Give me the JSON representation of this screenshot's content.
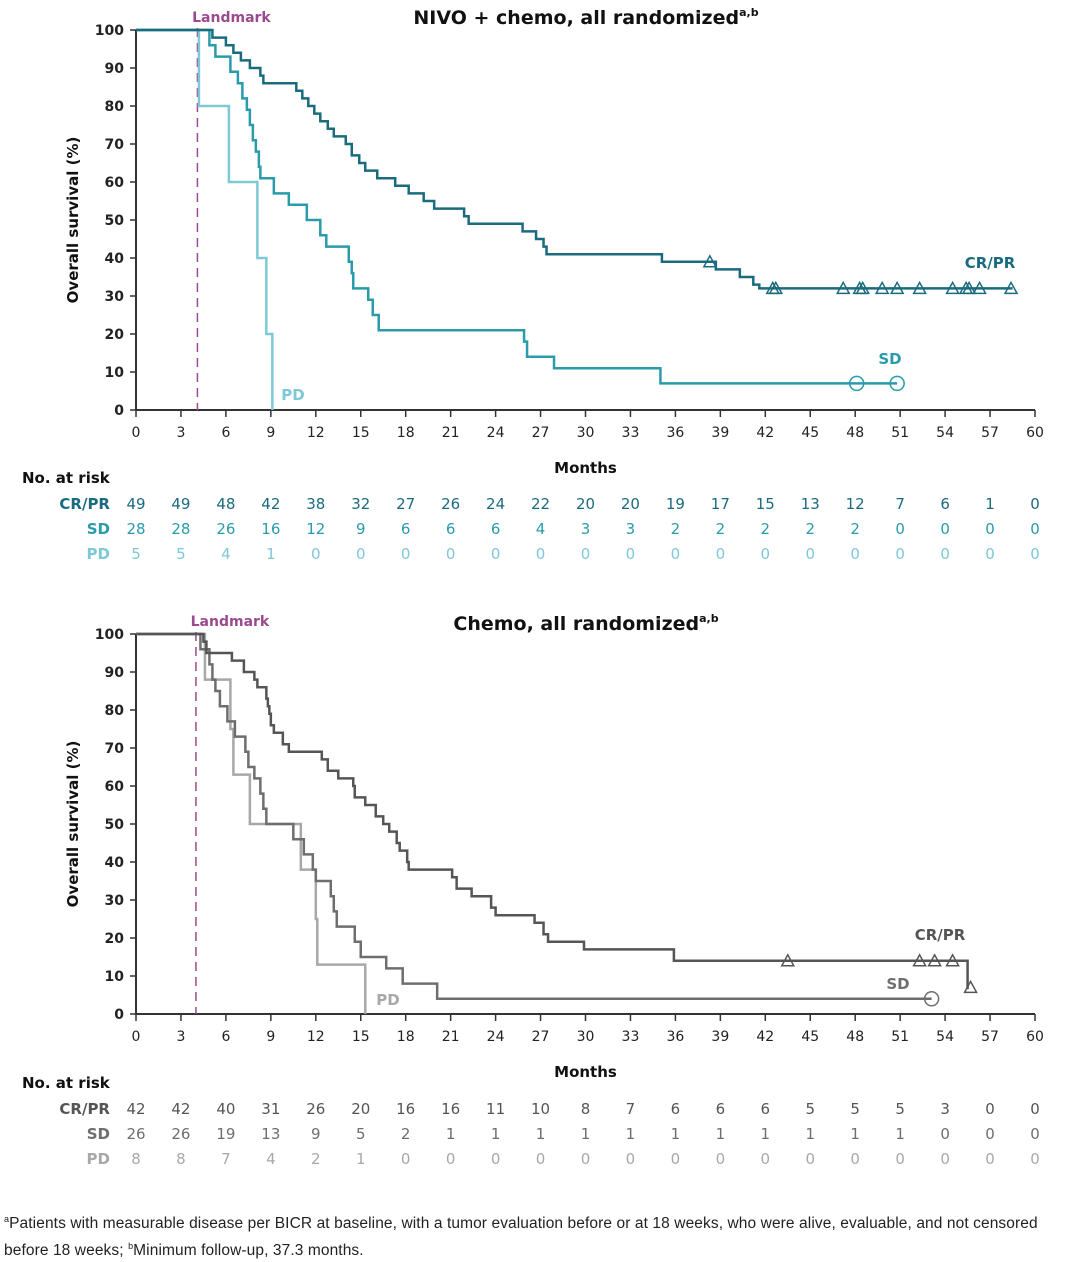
{
  "chart_data": [
    {
      "type": "line",
      "subtype": "kaplan-meier",
      "title": "NIVO + chemo, all randomized",
      "title_superscript": "a,b",
      "xlabel": "Months",
      "ylabel": "Overall survival (%)",
      "xlim": [
        0,
        60
      ],
      "ylim": [
        0,
        100
      ],
      "xticks": [
        0,
        3,
        6,
        9,
        12,
        15,
        18,
        21,
        24,
        27,
        30,
        33,
        36,
        39,
        42,
        45,
        48,
        51,
        54,
        57,
        60
      ],
      "yticks": [
        0,
        10,
        20,
        30,
        40,
        50,
        60,
        70,
        80,
        90,
        100
      ],
      "grid": false,
      "landmark": {
        "label": "Landmark",
        "x": 4.1,
        "color": "#9b4a8f"
      },
      "series": [
        {
          "name": "CR/PR",
          "color": "#1b6b7f",
          "censor_marker": "triangle",
          "label_pos": "right",
          "steps": [
            [
              0,
              100
            ],
            [
              5.1,
              98
            ],
            [
              6.0,
              96
            ],
            [
              6.5,
              94
            ],
            [
              7.0,
              92
            ],
            [
              7.6,
              90
            ],
            [
              8.3,
              88
            ],
            [
              8.5,
              86
            ],
            [
              10.7,
              84
            ],
            [
              11.1,
              82
            ],
            [
              11.5,
              80
            ],
            [
              11.9,
              78
            ],
            [
              12.3,
              76
            ],
            [
              12.8,
              74
            ],
            [
              13.2,
              72
            ],
            [
              14.0,
              70
            ],
            [
              14.4,
              67
            ],
            [
              14.9,
              65
            ],
            [
              15.3,
              63
            ],
            [
              16.1,
              61
            ],
            [
              17.3,
              59
            ],
            [
              18.2,
              57
            ],
            [
              19.2,
              55
            ],
            [
              19.9,
              53
            ],
            [
              21.9,
              51
            ],
            [
              22.2,
              49
            ],
            [
              25.8,
              47
            ],
            [
              26.7,
              45
            ],
            [
              27.2,
              43
            ],
            [
              27.4,
              41
            ],
            [
              35.1,
              39
            ],
            [
              38.7,
              37
            ],
            [
              40.3,
              35
            ],
            [
              41.2,
              33
            ],
            [
              41.6,
              32
            ],
            [
              58.5,
              32
            ]
          ],
          "censored": [
            38.3,
            42.5,
            42.7,
            47.2,
            48.3,
            48.5,
            49.8,
            50.8,
            52.3,
            54.5,
            55.4,
            55.6,
            56.3,
            58.4
          ],
          "censored_y": [
            39,
            32,
            32,
            32,
            32,
            32,
            32,
            32,
            32,
            32,
            32,
            32,
            32,
            32
          ]
        },
        {
          "name": "SD",
          "color": "#2a9bab",
          "censor_marker": "circle",
          "label_pos": "right",
          "steps": [
            [
              0,
              100
            ],
            [
              4.9,
              96
            ],
            [
              5.3,
              93
            ],
            [
              6.3,
              89
            ],
            [
              6.8,
              86
            ],
            [
              7.1,
              82
            ],
            [
              7.4,
              79
            ],
            [
              7.6,
              75
            ],
            [
              7.8,
              71
            ],
            [
              8.0,
              68
            ],
            [
              8.2,
              64
            ],
            [
              8.3,
              61
            ],
            [
              9.2,
              57
            ],
            [
              10.2,
              54
            ],
            [
              11.4,
              50
            ],
            [
              12.3,
              46
            ],
            [
              12.7,
              43
            ],
            [
              14.2,
              39
            ],
            [
              14.4,
              36
            ],
            [
              14.5,
              32
            ],
            [
              15.5,
              29
            ],
            [
              15.8,
              25
            ],
            [
              16.2,
              21
            ],
            [
              25.9,
              18
            ],
            [
              26.1,
              14
            ],
            [
              27.9,
              11
            ],
            [
              35.0,
              7
            ],
            [
              50.8,
              7
            ]
          ],
          "censored": [
            48.1,
            50.8
          ],
          "censored_y": [
            7,
            7
          ]
        },
        {
          "name": "PD",
          "color": "#7ec8d8",
          "censor_marker": "none",
          "label_pos": "right",
          "steps": [
            [
              0,
              100
            ],
            [
              4.2,
              80
            ],
            [
              6.2,
              60
            ],
            [
              8.1,
              40
            ],
            [
              8.7,
              20
            ],
            [
              9.1,
              0
            ]
          ],
          "censored": [],
          "censored_y": []
        }
      ],
      "risk_table": {
        "title": "No. at risk",
        "times": [
          0,
          3,
          6,
          9,
          12,
          15,
          18,
          21,
          24,
          27,
          30,
          33,
          36,
          39,
          42,
          45,
          48,
          51,
          54,
          57,
          60
        ],
        "rows": [
          {
            "name": "CR/PR",
            "color": "#1b6b7f",
            "values": [
              49,
              49,
              48,
              42,
              38,
              32,
              27,
              26,
              24,
              22,
              20,
              20,
              19,
              17,
              15,
              13,
              12,
              7,
              6,
              1,
              0
            ]
          },
          {
            "name": "SD",
            "color": "#2a9bab",
            "values": [
              28,
              28,
              26,
              16,
              12,
              9,
              6,
              6,
              6,
              4,
              3,
              3,
              2,
              2,
              2,
              2,
              2,
              0,
              0,
              0,
              0
            ]
          },
          {
            "name": "PD",
            "color": "#7ec8d8",
            "values": [
              5,
              5,
              4,
              1,
              0,
              0,
              0,
              0,
              0,
              0,
              0,
              0,
              0,
              0,
              0,
              0,
              0,
              0,
              0,
              0,
              0
            ]
          }
        ]
      }
    },
    {
      "type": "line",
      "subtype": "kaplan-meier",
      "title": "Chemo, all randomized",
      "title_superscript": "a,b",
      "xlabel": "Months",
      "ylabel": "Overall survival (%)",
      "xlim": [
        0,
        60
      ],
      "ylim": [
        0,
        100
      ],
      "xticks": [
        0,
        3,
        6,
        9,
        12,
        15,
        18,
        21,
        24,
        27,
        30,
        33,
        36,
        39,
        42,
        45,
        48,
        51,
        54,
        57,
        60
      ],
      "yticks": [
        0,
        10,
        20,
        30,
        40,
        50,
        60,
        70,
        80,
        90,
        100
      ],
      "grid": false,
      "landmark": {
        "label": "Landmark",
        "x": 4.0,
        "color": "#9b4a8f"
      },
      "series": [
        {
          "name": "CR/PR",
          "color": "#555555",
          "censor_marker": "triangle",
          "label_pos": "right",
          "steps": [
            [
              0,
              100
            ],
            [
              4.5,
              98
            ],
            [
              4.7,
              95
            ],
            [
              6.4,
              93
            ],
            [
              7.2,
              90
            ],
            [
              7.9,
              88
            ],
            [
              8.1,
              86
            ],
            [
              8.7,
              83
            ],
            [
              8.8,
              81
            ],
            [
              8.9,
              79
            ],
            [
              9.0,
              76
            ],
            [
              9.2,
              74
            ],
            [
              9.8,
              71
            ],
            [
              10.2,
              69
            ],
            [
              12.4,
              67
            ],
            [
              12.8,
              64
            ],
            [
              13.5,
              62
            ],
            [
              14.5,
              60
            ],
            [
              14.6,
              57
            ],
            [
              15.3,
              55
            ],
            [
              16.0,
              52
            ],
            [
              16.5,
              50
            ],
            [
              16.9,
              48
            ],
            [
              17.4,
              45
            ],
            [
              17.6,
              43
            ],
            [
              18.1,
              40
            ],
            [
              18.2,
              38
            ],
            [
              21.1,
              36
            ],
            [
              21.4,
              33
            ],
            [
              22.4,
              31
            ],
            [
              23.7,
              28
            ],
            [
              24.0,
              26
            ],
            [
              26.6,
              24
            ],
            [
              27.2,
              21
            ],
            [
              27.5,
              19
            ],
            [
              29.9,
              17
            ],
            [
              35.9,
              14
            ],
            [
              55.5,
              14
            ],
            [
              55.5,
              6.5
            ]
          ],
          "censored": [
            43.5,
            52.3,
            53.3,
            54.5,
            55.7
          ],
          "censored_y": [
            14,
            14,
            14,
            14,
            7
          ]
        },
        {
          "name": "SD",
          "color": "#6e6e6e",
          "censor_marker": "circle",
          "label_pos": "right",
          "steps": [
            [
              0,
              100
            ],
            [
              4.3,
              96
            ],
            [
              4.9,
              92
            ],
            [
              5.1,
              88
            ],
            [
              5.3,
              85
            ],
            [
              5.6,
              81
            ],
            [
              6.1,
              77
            ],
            [
              6.6,
              73
            ],
            [
              7.3,
              69
            ],
            [
              7.5,
              65
            ],
            [
              7.9,
              62
            ],
            [
              8.3,
              58
            ],
            [
              8.5,
              54
            ],
            [
              8.7,
              50
            ],
            [
              10.5,
              46
            ],
            [
              11.2,
              42
            ],
            [
              11.8,
              38
            ],
            [
              12.0,
              35
            ],
            [
              13.0,
              31
            ],
            [
              13.2,
              27
            ],
            [
              13.4,
              23
            ],
            [
              14.6,
              19
            ],
            [
              15.0,
              15
            ],
            [
              16.7,
              12
            ],
            [
              17.8,
              8
            ],
            [
              20.1,
              4
            ],
            [
              53.1,
              4
            ]
          ],
          "censored": [
            53.1
          ],
          "censored_y": [
            4
          ]
        },
        {
          "name": "PD",
          "color": "#a8a8a8",
          "censor_marker": "none",
          "label_pos": "right",
          "steps": [
            [
              0,
              100
            ],
            [
              4.6,
              88
            ],
            [
              6.3,
              75
            ],
            [
              6.5,
              63
            ],
            [
              7.6,
              50
            ],
            [
              11.0,
              38
            ],
            [
              12.0,
              25
            ],
            [
              12.1,
              13
            ],
            [
              15.3,
              0
            ]
          ],
          "censored": [],
          "censored_y": []
        }
      ],
      "risk_table": {
        "title": "No. at risk",
        "times": [
          0,
          3,
          6,
          9,
          12,
          15,
          18,
          21,
          24,
          27,
          30,
          33,
          36,
          39,
          42,
          45,
          48,
          51,
          54,
          57,
          60
        ],
        "rows": [
          {
            "name": "CR/PR",
            "color": "#555555",
            "values": [
              42,
              42,
              40,
              31,
              26,
              20,
              16,
              16,
              11,
              10,
              8,
              7,
              6,
              6,
              6,
              5,
              5,
              5,
              3,
              0,
              0
            ]
          },
          {
            "name": "SD",
            "color": "#6e6e6e",
            "values": [
              26,
              26,
              19,
              13,
              9,
              5,
              2,
              1,
              1,
              1,
              1,
              1,
              1,
              1,
              1,
              1,
              1,
              1,
              0,
              0,
              0
            ]
          },
          {
            "name": "PD",
            "color": "#a8a8a8",
            "values": [
              8,
              8,
              7,
              4,
              2,
              1,
              0,
              0,
              0,
              0,
              0,
              0,
              0,
              0,
              0,
              0,
              0,
              0,
              0,
              0,
              0
            ]
          }
        ]
      }
    }
  ],
  "footnote": {
    "a_marker": "a",
    "a_text": "Patients with measurable disease per BICR at baseline, with a tumor evaluation before or at 18 weeks, who were alive, evaluable, and not censored before 18 weeks; ",
    "b_marker": "b",
    "b_text": "Minimum follow-up, 37.3 months."
  }
}
